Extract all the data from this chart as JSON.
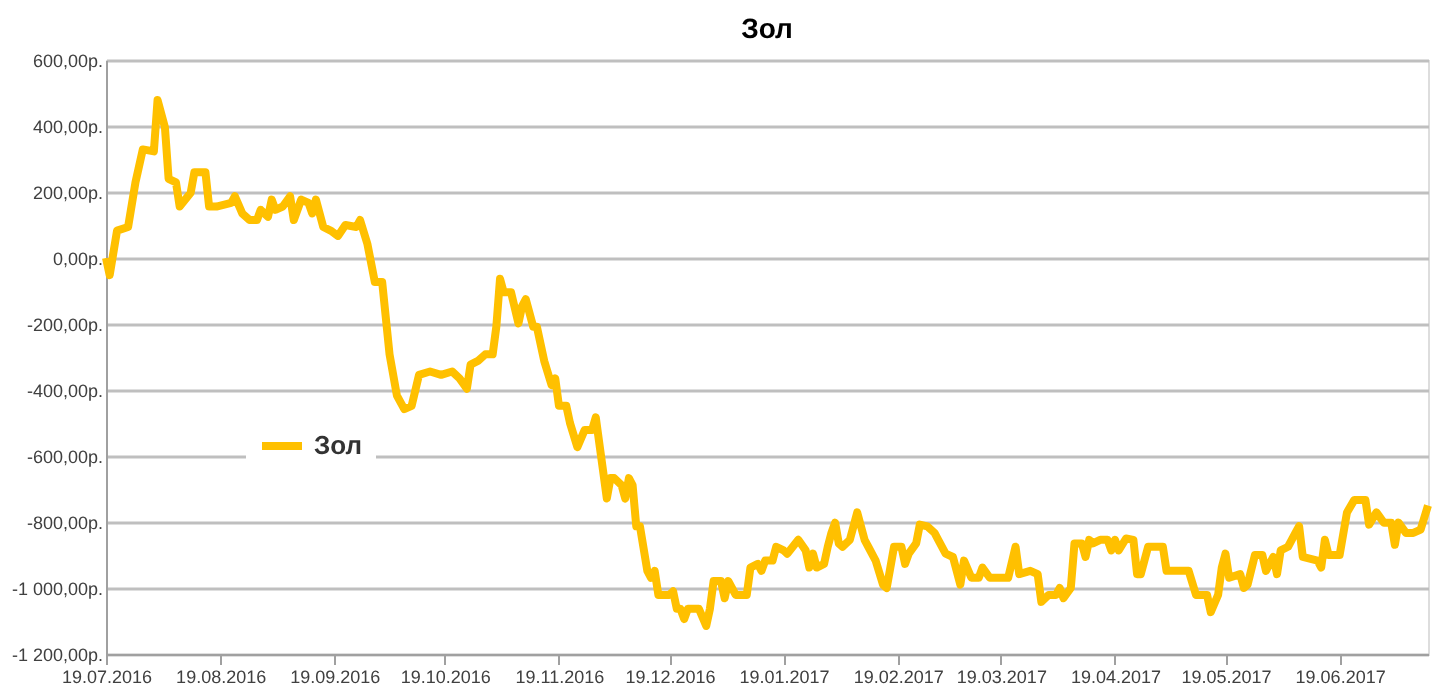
{
  "chart_data": {
    "type": "line",
    "title": "Зол",
    "legend": "left",
    "grid": "y",
    "marker": "none",
    "line_style": "solid",
    "xlim": [
      "2016-07-19",
      "2017-07-13"
    ],
    "xticks": [
      {
        "value": "2016-07-19",
        "label": "19.07.2016"
      },
      {
        "value": "2016-08-19",
        "label": "19.08.2016"
      },
      {
        "value": "2016-09-19",
        "label": "19.09.2016"
      },
      {
        "value": "2016-10-19",
        "label": "19.10.2016"
      },
      {
        "value": "2016-11-19",
        "label": "19.11.2016"
      },
      {
        "value": "2016-12-19",
        "label": "19.12.2016"
      },
      {
        "value": "2017-01-19",
        "label": "19.01.2017"
      },
      {
        "value": "2017-02-19",
        "label": "19.02.2017"
      },
      {
        "value": "2017-03-19",
        "label": "19.03.2017"
      },
      {
        "value": "2017-04-19",
        "label": "19.04.2017"
      },
      {
        "value": "2017-05-19",
        "label": "19.05.2017"
      },
      {
        "value": "2017-06-19",
        "label": "19.06.2017"
      }
    ],
    "ylim": [
      -1200,
      600
    ],
    "yticks": [
      {
        "value": -1200,
        "label": "-1 200,00р."
      },
      {
        "value": -1000,
        "label": "-1 000,00р."
      },
      {
        "value": -800,
        "label": "-800,00р."
      },
      {
        "value": -600,
        "label": "-600,00р."
      },
      {
        "value": -400,
        "label": "-400,00р."
      },
      {
        "value": -200,
        "label": "-200,00р."
      },
      {
        "value": 0,
        "label": "0,00р."
      },
      {
        "value": 200,
        "label": "200,00р."
      },
      {
        "value": 400,
        "label": "400,00р."
      },
      {
        "value": 600,
        "label": "600,00р."
      }
    ],
    "series": [
      {
        "name": "Зол",
        "color": "#ffc000",
        "x": [
          "2016-07-19",
          "2016-07-20",
          "2016-07-22",
          "2016-07-25",
          "2016-07-27",
          "2016-07-29",
          "2016-08-01",
          "2016-08-02",
          "2016-08-04",
          "2016-08-05",
          "2016-08-07",
          "2016-08-08",
          "2016-08-11",
          "2016-08-12",
          "2016-08-15",
          "2016-08-16",
          "2016-08-18",
          "2016-08-22",
          "2016-08-23",
          "2016-08-25",
          "2016-08-27",
          "2016-08-29",
          "2016-08-30",
          "2016-09-01",
          "2016-09-02",
          "2016-09-03",
          "2016-09-05",
          "2016-09-07",
          "2016-09-08",
          "2016-09-10",
          "2016-09-12",
          "2016-09-13",
          "2016-09-14",
          "2016-09-16",
          "2016-09-18",
          "2016-09-20",
          "2016-09-22",
          "2016-09-25",
          "2016-09-26",
          "2016-09-28",
          "2016-09-30",
          "2016-10-02",
          "2016-10-04",
          "2016-10-06",
          "2016-10-08",
          "2016-10-10",
          "2016-10-12",
          "2016-10-15",
          "2016-10-18",
          "2016-10-21",
          "2016-10-23",
          "2016-10-25",
          "2016-10-26",
          "2016-10-28",
          "2016-10-30",
          "2016-11-01",
          "2016-11-02",
          "2016-11-03",
          "2016-11-04",
          "2016-11-06",
          "2016-11-08",
          "2016-11-09",
          "2016-11-10",
          "2016-11-12",
          "2016-11-13",
          "2016-11-15",
          "2016-11-17",
          "2016-11-18",
          "2016-11-19",
          "2016-11-21",
          "2016-11-22",
          "2016-11-24",
          "2016-11-26",
          "2016-11-28",
          "2016-11-29",
          "2016-12-01",
          "2016-12-02",
          "2016-12-03",
          "2016-12-04",
          "2016-12-06",
          "2016-12-07",
          "2016-12-08",
          "2016-12-09",
          "2016-12-10",
          "2016-12-11",
          "2016-12-13",
          "2016-12-14",
          "2016-12-15",
          "2016-12-16",
          "2016-12-19",
          "2016-12-20",
          "2016-12-21",
          "2016-12-22",
          "2016-12-23",
          "2016-12-24",
          "2016-12-27",
          "2016-12-29",
          "2016-12-30",
          "2016-12-31",
          "2017-01-02",
          "2017-01-03",
          "2017-01-04",
          "2017-01-06",
          "2017-01-09",
          "2017-01-10",
          "2017-01-12",
          "2017-01-13",
          "2017-01-14",
          "2017-01-16",
          "2017-01-17",
          "2017-01-19",
          "2017-01-20",
          "2017-01-23",
          "2017-01-25",
          "2017-01-26",
          "2017-01-27",
          "2017-01-28",
          "2017-01-30",
          "2017-01-31",
          "2017-02-01",
          "2017-02-02",
          "2017-02-03",
          "2017-02-04",
          "2017-02-06",
          "2017-02-08",
          "2017-02-10",
          "2017-02-11",
          "2017-02-13",
          "2017-02-15",
          "2017-02-16",
          "2017-02-17",
          "2017-02-18",
          "2017-02-20",
          "2017-02-21",
          "2017-02-22",
          "2017-02-24",
          "2017-02-25",
          "2017-02-27",
          "2017-03-01",
          "2017-03-02",
          "2017-03-04",
          "2017-03-06",
          "2017-03-08",
          "2017-03-09",
          "2017-03-11",
          "2017-03-13",
          "2017-03-14",
          "2017-03-16",
          "2017-03-21",
          "2017-03-23",
          "2017-03-24",
          "2017-03-27",
          "2017-03-29",
          "2017-03-30",
          "2017-04-01",
          "2017-04-03",
          "2017-04-04",
          "2017-04-05",
          "2017-04-07",
          "2017-04-08",
          "2017-04-10",
          "2017-04-11",
          "2017-04-12",
          "2017-04-13",
          "2017-04-15",
          "2017-04-17",
          "2017-04-18",
          "2017-04-19",
          "2017-04-20",
          "2017-04-22",
          "2017-04-24",
          "2017-04-25",
          "2017-04-26",
          "2017-04-28",
          "2017-05-02",
          "2017-05-03",
          "2017-05-09",
          "2017-05-11",
          "2017-05-14",
          "2017-05-15",
          "2017-05-17",
          "2017-05-18",
          "2017-05-19",
          "2017-05-20",
          "2017-05-23",
          "2017-05-24",
          "2017-05-25",
          "2017-05-27",
          "2017-05-29",
          "2017-05-30",
          "2017-06-01",
          "2017-06-02",
          "2017-06-03",
          "2017-06-05",
          "2017-06-07",
          "2017-06-08",
          "2017-06-09",
          "2017-06-13",
          "2017-06-14",
          "2017-06-15",
          "2017-06-16",
          "2017-06-19",
          "2017-06-21",
          "2017-06-23",
          "2017-06-26",
          "2017-06-27",
          "2017-06-29",
          "2017-07-01",
          "2017-07-03",
          "2017-07-04",
          "2017-07-05",
          "2017-07-07",
          "2017-07-09",
          "2017-07-11",
          "2017-07-13"
        ],
        "values": [
          0,
          -52,
          83,
          94,
          229,
          329,
          323,
          479,
          396,
          240,
          229,
          156,
          198,
          260,
          260,
          156,
          156,
          167,
          187,
          135,
          115,
          115,
          146,
          125,
          177,
          146,
          156,
          187,
          115,
          177,
          167,
          135,
          177,
          94,
          83,
          67,
          100,
          94,
          115,
          42,
          -73,
          -73,
          -292,
          -417,
          -458,
          -448,
          -354,
          -344,
          -354,
          -344,
          -365,
          -396,
          -323,
          -312,
          -292,
          -292,
          -208,
          -63,
          -104,
          -104,
          -198,
          -146,
          -125,
          -208,
          -208,
          -312,
          -385,
          -365,
          -448,
          -448,
          -500,
          -573,
          -521,
          -521,
          -483,
          -646,
          -729,
          -667,
          -667,
          -688,
          -729,
          -667,
          -688,
          -813,
          -813,
          -948,
          -969,
          -948,
          -1021,
          -1021,
          -1010,
          -1063,
          -1063,
          -1094,
          -1063,
          -1063,
          -1115,
          -1063,
          -979,
          -979,
          -1031,
          -979,
          -1021,
          -1021,
          -938,
          -927,
          -948,
          -917,
          -917,
          -875,
          -886,
          -896,
          -854,
          -886,
          -938,
          -896,
          -938,
          -927,
          -875,
          -833,
          -802,
          -865,
          -875,
          -854,
          -771,
          -854,
          -875,
          -917,
          -990,
          -1000,
          -938,
          -875,
          -875,
          -927,
          -896,
          -865,
          -808,
          -813,
          -833,
          -854,
          -896,
          -906,
          -990,
          -917,
          -969,
          -969,
          -938,
          -969,
          -969,
          -875,
          -958,
          -948,
          -958,
          -1042,
          -1021,
          -1021,
          -1000,
          -1031,
          -1000,
          -865,
          -865,
          -906,
          -854,
          -865,
          -854,
          -854,
          -886,
          -854,
          -886,
          -850,
          -854,
          -958,
          -958,
          -875,
          -875,
          -948,
          -948,
          -1021,
          -1021,
          -1073,
          -1021,
          -938,
          -896,
          -969,
          -958,
          -1000,
          -990,
          -900,
          -900,
          -948,
          -906,
          -958,
          -886,
          -875,
          -833,
          -813,
          -906,
          -917,
          -938,
          -854,
          -900,
          -900,
          -771,
          -733,
          -733,
          -808,
          -771,
          -802,
          -802,
          -869,
          -802,
          -833,
          -833,
          -823,
          -750
        ]
      }
    ]
  }
}
